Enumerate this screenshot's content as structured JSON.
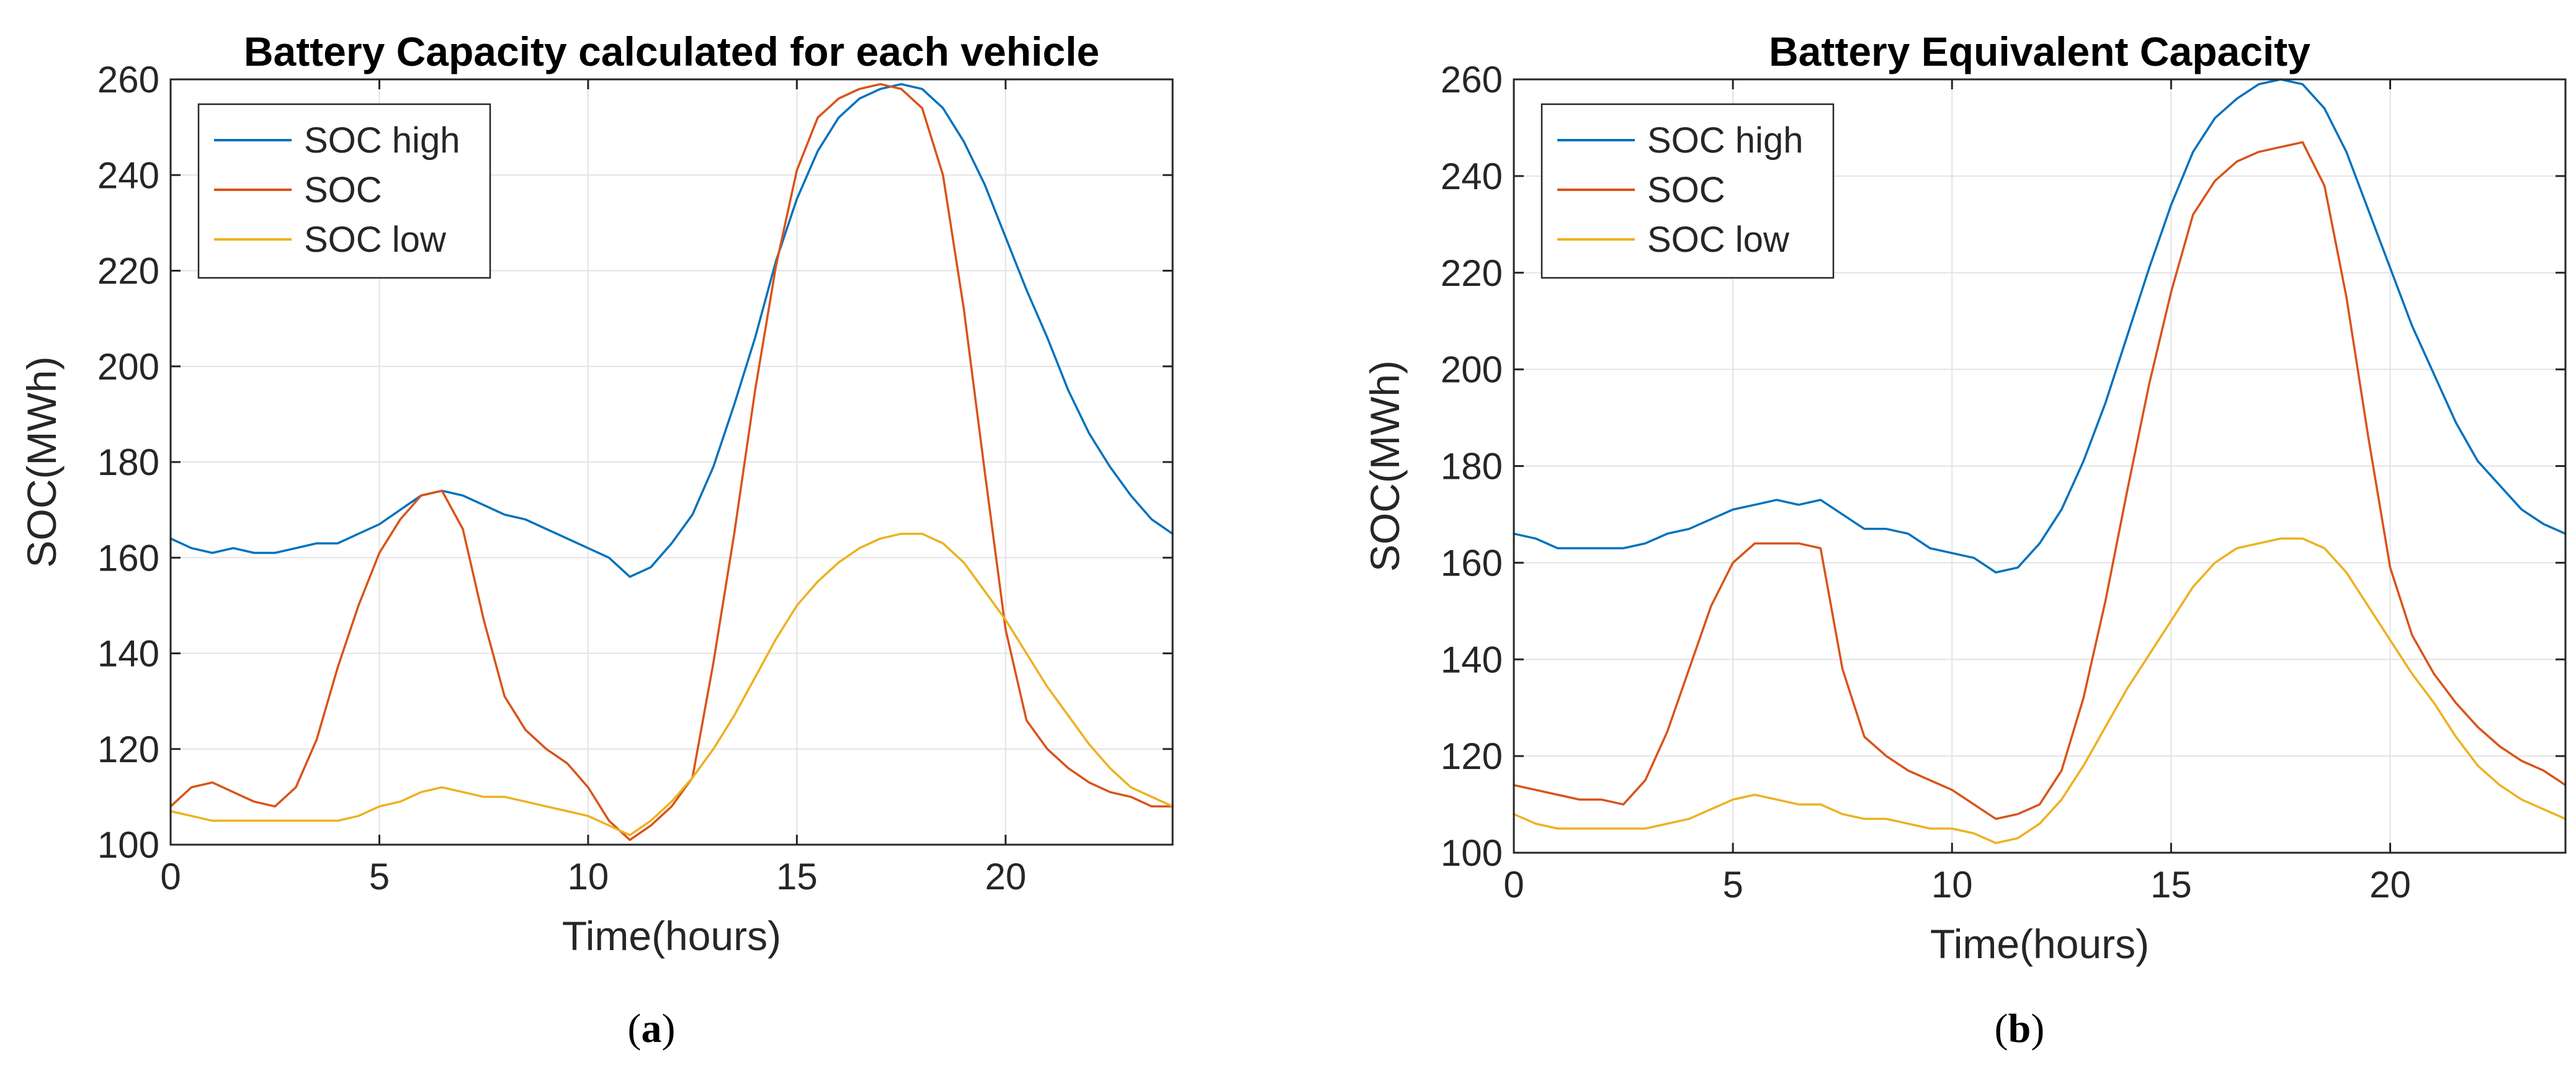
{
  "chart_data": [
    {
      "type": "line",
      "title": "Battery Capacity calculated for each vehicle",
      "caption_letter": "a",
      "xlabel": "Time(hours)",
      "ylabel": "SOC(MWh)",
      "xlim": [
        0,
        24
      ],
      "ylim": [
        100,
        260
      ],
      "xticks": [
        0,
        5,
        10,
        15,
        20
      ],
      "yticks": [
        100,
        120,
        140,
        160,
        180,
        200,
        220,
        240,
        260
      ],
      "grid": true,
      "legend_position": "top-left",
      "x": [
        0,
        0.5,
        1,
        1.5,
        2,
        2.5,
        3,
        3.5,
        4,
        4.5,
        5,
        5.5,
        6,
        6.5,
        7,
        7.5,
        8,
        8.5,
        9,
        9.5,
        10,
        10.5,
        11,
        11.5,
        12,
        12.5,
        13,
        13.5,
        14,
        14.5,
        15,
        15.5,
        16,
        16.5,
        17,
        17.5,
        18,
        18.5,
        19,
        19.5,
        20,
        20.5,
        21,
        21.5,
        22,
        22.5,
        23,
        23.5,
        24
      ],
      "series": [
        {
          "name": "SOC high",
          "color": "#0072BD",
          "values": [
            164,
            162,
            161,
            162,
            161,
            161,
            162,
            163,
            163,
            165,
            167,
            170,
            173,
            174,
            173,
            171,
            169,
            168,
            166,
            164,
            162,
            160,
            156,
            158,
            163,
            169,
            179,
            192,
            206,
            222,
            235,
            245,
            252,
            256,
            258,
            259,
            258,
            254,
            247,
            238,
            227,
            216,
            206,
            195,
            186,
            179,
            173,
            168,
            165
          ]
        },
        {
          "name": "SOC",
          "color": "#D95319",
          "values": [
            108,
            112,
            113,
            111,
            109,
            108,
            112,
            122,
            137,
            150,
            161,
            168,
            173,
            174,
            166,
            147,
            131,
            124,
            120,
            117,
            112,
            105,
            101,
            104,
            108,
            114,
            138,
            165,
            195,
            221,
            241,
            252,
            256,
            258,
            259,
            258,
            254,
            240,
            212,
            178,
            145,
            126,
            120,
            116,
            113,
            111,
            110,
            108,
            108
          ]
        },
        {
          "name": "SOC low",
          "color": "#EDB120",
          "values": [
            107,
            106,
            105,
            105,
            105,
            105,
            105,
            105,
            105,
            106,
            108,
            109,
            111,
            112,
            111,
            110,
            110,
            109,
            108,
            107,
            106,
            104,
            102,
            105,
            109,
            114,
            120,
            127,
            135,
            143,
            150,
            155,
            159,
            162,
            164,
            165,
            165,
            163,
            159,
            153,
            147,
            140,
            133,
            127,
            121,
            116,
            112,
            110,
            108
          ]
        }
      ]
    },
    {
      "type": "line",
      "title": "Battery Equivalent Capacity",
      "caption_letter": "b",
      "xlabel": "Time(hours)",
      "ylabel": "SOC(MWh)",
      "xlim": [
        0,
        24
      ],
      "ylim": [
        100,
        260
      ],
      "xticks": [
        0,
        5,
        10,
        15,
        20
      ],
      "yticks": [
        100,
        120,
        140,
        160,
        180,
        200,
        220,
        240,
        260
      ],
      "grid": true,
      "legend_position": "top-left",
      "x": [
        0,
        0.5,
        1,
        1.5,
        2,
        2.5,
        3,
        3.5,
        4,
        4.5,
        5,
        5.5,
        6,
        6.5,
        7,
        7.5,
        8,
        8.5,
        9,
        9.5,
        10,
        10.5,
        11,
        11.5,
        12,
        12.5,
        13,
        13.5,
        14,
        14.5,
        15,
        15.5,
        16,
        16.5,
        17,
        17.5,
        18,
        18.5,
        19,
        19.5,
        20,
        20.5,
        21,
        21.5,
        22,
        22.5,
        23,
        23.5,
        24
      ],
      "series": [
        {
          "name": "SOC high",
          "color": "#0072BD",
          "values": [
            166,
            165,
            163,
            163,
            163,
            163,
            164,
            166,
            167,
            169,
            171,
            172,
            173,
            172,
            173,
            170,
            167,
            167,
            166,
            163,
            162,
            161,
            158,
            159,
            164,
            171,
            181,
            193,
            207,
            221,
            234,
            245,
            252,
            256,
            259,
            260,
            259,
            254,
            245,
            233,
            221,
            209,
            199,
            189,
            181,
            176,
            171,
            168,
            166
          ]
        },
        {
          "name": "SOC",
          "color": "#D95319",
          "values": [
            114,
            113,
            112,
            111,
            111,
            110,
            115,
            125,
            138,
            151,
            160,
            164,
            164,
            164,
            163,
            138,
            124,
            120,
            117,
            115,
            113,
            110,
            107,
            108,
            110,
            117,
            132,
            152,
            175,
            197,
            216,
            232,
            239,
            243,
            245,
            246,
            247,
            238,
            215,
            186,
            159,
            145,
            137,
            131,
            126,
            122,
            119,
            117,
            114
          ]
        },
        {
          "name": "SOC low",
          "color": "#EDB120",
          "values": [
            108,
            106,
            105,
            105,
            105,
            105,
            105,
            106,
            107,
            109,
            111,
            112,
            111,
            110,
            110,
            108,
            107,
            107,
            106,
            105,
            105,
            104,
            102,
            103,
            106,
            111,
            118,
            126,
            134,
            141,
            148,
            155,
            160,
            163,
            164,
            165,
            165,
            163,
            158,
            151,
            144,
            137,
            131,
            124,
            118,
            114,
            111,
            109,
            107
          ]
        }
      ]
    }
  ]
}
